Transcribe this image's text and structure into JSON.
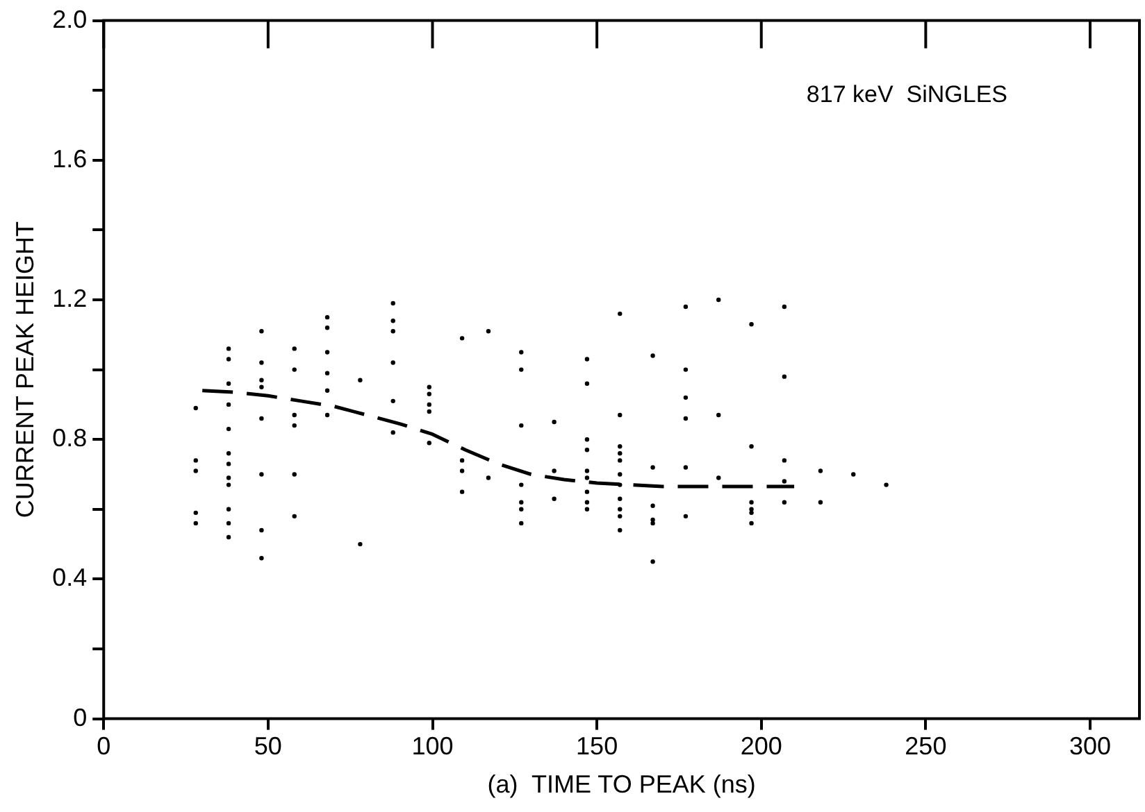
{
  "chart_data": {
    "type": "scatter",
    "xlabel": "(a)  TIME TO PEAK (ns)",
    "ylabel": "CURRENT PEAK HEIGHT",
    "annotations": [
      "817 keV  SiNGLES"
    ],
    "xlim": [
      0,
      315
    ],
    "xticks": [
      0,
      50,
      100,
      150,
      200,
      250,
      300
    ],
    "ylim": [
      0,
      2.0
    ],
    "yticks": [
      {
        "value": 0,
        "label": "0"
      },
      {
        "value": 0.2,
        "label": null
      },
      {
        "value": 0.4,
        "label": "0.4"
      },
      {
        "value": 0.6,
        "label": null
      },
      {
        "value": 0.8,
        "label": "0.8"
      },
      {
        "value": 1.0,
        "label": null
      },
      {
        "value": 1.2,
        "label": "1.2"
      },
      {
        "value": 1.4,
        "label": null
      },
      {
        "value": 1.6,
        "label": "1.6"
      },
      {
        "value": 1.8,
        "label": null
      },
      {
        "value": 2.0,
        "label": "2.0"
      }
    ],
    "grid": false,
    "legend": false,
    "series": [
      {
        "color": "#000000",
        "marker": "circle",
        "x": [
          28,
          28,
          28,
          28,
          28,
          38,
          38,
          38,
          38,
          38,
          38,
          38,
          38,
          38,
          38,
          38,
          38,
          48,
          48,
          48,
          48,
          48,
          48,
          48,
          48,
          58,
          58,
          58,
          58,
          58,
          58,
          68,
          68,
          68,
          68,
          68,
          68,
          78,
          78,
          88,
          88,
          88,
          88,
          88,
          88,
          99,
          99,
          99,
          99,
          99,
          109,
          109,
          109,
          109,
          117,
          117,
          127,
          127,
          127,
          127,
          127,
          127,
          127,
          137,
          137,
          137,
          147,
          147,
          147,
          147,
          147,
          147,
          147,
          147,
          147,
          157,
          157,
          157,
          157,
          157,
          157,
          157,
          157,
          157,
          157,
          157,
          167,
          167,
          167,
          167,
          167,
          167,
          177,
          177,
          177,
          177,
          177,
          177,
          187,
          187,
          187,
          197,
          197,
          197,
          197,
          197,
          197,
          207,
          207,
          207,
          207,
          207,
          218,
          218,
          228,
          238
        ],
        "values": [
          0.89,
          0.74,
          0.71,
          0.59,
          0.56,
          1.06,
          1.03,
          0.96,
          0.9,
          0.83,
          0.76,
          0.73,
          0.69,
          0.67,
          0.6,
          0.56,
          0.52,
          1.11,
          1.02,
          0.97,
          0.95,
          0.86,
          0.7,
          0.54,
          0.46,
          1.06,
          1.0,
          0.87,
          0.84,
          0.7,
          0.58,
          1.15,
          1.12,
          1.05,
          0.99,
          0.94,
          0.87,
          0.97,
          0.5,
          1.19,
          1.14,
          1.11,
          1.02,
          0.91,
          0.82,
          0.95,
          0.93,
          0.9,
          0.88,
          0.79,
          1.09,
          0.74,
          0.71,
          0.65,
          1.11,
          0.69,
          1.05,
          1.0,
          0.84,
          0.67,
          0.62,
          0.6,
          0.56,
          0.85,
          0.71,
          0.63,
          1.03,
          0.96,
          0.8,
          0.77,
          0.71,
          0.69,
          0.65,
          0.62,
          0.6,
          1.16,
          0.87,
          0.78,
          0.76,
          0.74,
          0.7,
          0.67,
          0.63,
          0.6,
          0.58,
          0.54,
          1.04,
          0.72,
          0.61,
          0.57,
          0.56,
          0.45,
          1.18,
          1.0,
          0.92,
          0.86,
          0.72,
          0.58,
          1.2,
          0.87,
          0.69,
          1.13,
          0.78,
          0.62,
          0.6,
          0.59,
          0.56,
          1.18,
          0.98,
          0.74,
          0.68,
          0.62,
          0.71,
          0.62,
          0.7,
          0.67
        ]
      },
      {
        "type": "line",
        "color": "#000000",
        "marker": "none",
        "line_style": "dashed",
        "x": [
          30,
          40,
          50,
          60,
          70,
          80,
          90,
          100,
          110,
          120,
          130,
          140,
          150,
          160,
          170,
          180,
          190,
          200,
          210
        ],
        "values": [
          0.94,
          0.935,
          0.925,
          0.91,
          0.895,
          0.87,
          0.845,
          0.815,
          0.77,
          0.73,
          0.7,
          0.685,
          0.675,
          0.67,
          0.665,
          0.665,
          0.665,
          0.665,
          0.665
        ]
      }
    ]
  }
}
